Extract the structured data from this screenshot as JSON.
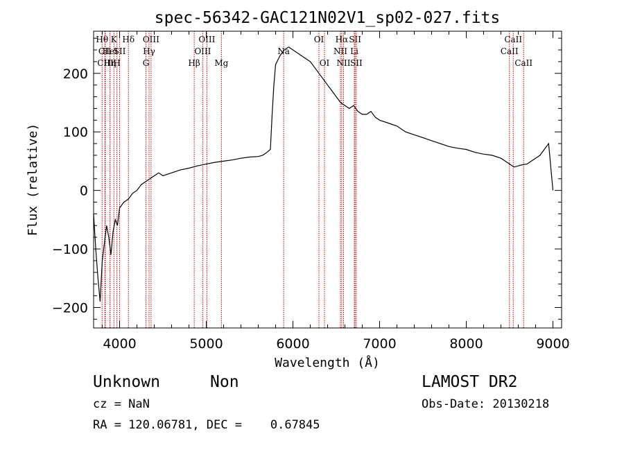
{
  "chart_data": {
    "type": "line",
    "title": "spec-56342-GAC121N02V1_sp02-027.fits",
    "xlabel": "Wavelength (Å)",
    "ylabel": "Flux (relative)",
    "xlim": [
      3700,
      9100
    ],
    "ylim": [
      -235,
      272
    ],
    "x_ticks": [
      4000,
      5000,
      6000,
      7000,
      8000,
      9000
    ],
    "y_ticks": [
      -200,
      -100,
      0,
      100,
      200
    ],
    "x_tick_labels": [
      "4000",
      "5000",
      "6000",
      "7000",
      "8000",
      "9000"
    ],
    "y_tick_labels": [
      "−200",
      "−100",
      "0",
      "100",
      "200"
    ],
    "grid": false,
    "series": [
      {
        "line_color": "#000000",
        "x": [
          3700,
          3725,
          3750,
          3775,
          3800,
          3825,
          3850,
          3875,
          3900,
          3925,
          3950,
          3975,
          4000,
          4050,
          4100,
          4150,
          4200,
          4250,
          4300,
          4350,
          4400,
          4450,
          4500,
          4600,
          4700,
          4800,
          4900,
          5000,
          5100,
          5200,
          5300,
          5400,
          5500,
          5600,
          5650,
          5700,
          5740,
          5760,
          5780,
          5800,
          5850,
          5900,
          5950,
          6000,
          6050,
          6100,
          6150,
          6200,
          6250,
          6300,
          6350,
          6400,
          6450,
          6500,
          6550,
          6600,
          6650,
          6700,
          6750,
          6800,
          6850,
          6900,
          6950,
          7000,
          7100,
          7200,
          7300,
          7400,
          7500,
          7600,
          7700,
          7800,
          7900,
          8000,
          8100,
          8200,
          8300,
          8400,
          8500,
          8550,
          8600,
          8650,
          8700,
          8750,
          8800,
          8850,
          8900,
          8950,
          9000
        ],
        "y": [
          -40,
          -100,
          -150,
          -190,
          -120,
          -90,
          -60,
          -80,
          -110,
          -70,
          -50,
          -60,
          -30,
          -20,
          -15,
          -5,
          0,
          10,
          15,
          20,
          25,
          30,
          25,
          30,
          35,
          38,
          42,
          45,
          48,
          50,
          52,
          55,
          57,
          58,
          60,
          65,
          70,
          130,
          180,
          215,
          230,
          240,
          245,
          240,
          235,
          230,
          225,
          220,
          210,
          200,
          190,
          180,
          170,
          160,
          150,
          145,
          140,
          145,
          135,
          130,
          130,
          135,
          125,
          120,
          115,
          110,
          100,
          95,
          90,
          85,
          80,
          75,
          72,
          70,
          65,
          62,
          60,
          55,
          45,
          40,
          42,
          44,
          45,
          50,
          55,
          60,
          70,
          80,
          0
        ]
      }
    ],
    "spectral_lines": [
      {
        "label": "Hθ",
        "wavelength": 3798,
        "row": 1
      },
      {
        "label": "CII",
        "wavelength": 3830,
        "row": 2
      },
      {
        "label": "CIII",
        "wavelength": 3836,
        "row": 3
      },
      {
        "label": "HeI",
        "wavelength": 3889,
        "row": 2
      },
      {
        "label": "K",
        "wavelength": 3934,
        "row": 1
      },
      {
        "label": "Hη",
        "wavelength": 3889,
        "row": 3
      },
      {
        "label": "SII",
        "wavelength": 4000,
        "row": 2
      },
      {
        "label": "H",
        "wavelength": 3969,
        "row": 3
      },
      {
        "label": "Hδ",
        "wavelength": 4102,
        "row": 1
      },
      {
        "label": "OIII",
        "wavelength": 4363,
        "row": 1
      },
      {
        "label": "Hγ",
        "wavelength": 4340,
        "row": 2
      },
      {
        "label": "G",
        "wavelength": 4304,
        "row": 3
      },
      {
        "label": "OIII",
        "wavelength": 5007,
        "row": 1
      },
      {
        "label": "OIII",
        "wavelength": 4959,
        "row": 2
      },
      {
        "label": "Hβ",
        "wavelength": 4861,
        "row": 3
      },
      {
        "label": "Mg",
        "wavelength": 5175,
        "row": 3
      },
      {
        "label": "Na",
        "wavelength": 5893,
        "row": 2
      },
      {
        "label": "OI",
        "wavelength": 6300,
        "row": 1
      },
      {
        "label": "OI",
        "wavelength": 6364,
        "row": 3
      },
      {
        "label": "Hα",
        "wavelength": 6563,
        "row": 1
      },
      {
        "label": "SII",
        "wavelength": 6717,
        "row": 1
      },
      {
        "label": "NII",
        "wavelength": 6548,
        "row": 2
      },
      {
        "label": "Li",
        "wavelength": 6708,
        "row": 2
      },
      {
        "label": "NII",
        "wavelength": 6584,
        "row": 3
      },
      {
        "label": "SII",
        "wavelength": 6731,
        "row": 3
      },
      {
        "label": "CaII",
        "wavelength": 8542,
        "row": 1
      },
      {
        "label": "CaII",
        "wavelength": 8498,
        "row": 2
      },
      {
        "label": "CaII",
        "wavelength": 8662,
        "row": 3
      }
    ],
    "spectral_line_color": "#cc0000"
  },
  "footer": {
    "object_class": "Unknown",
    "object_subclass": "Non",
    "survey": "LAMOST DR2",
    "cz": "cz = NaN",
    "obs_date": "Obs-Date: 20130218",
    "radec": "RA = 120.06781, DEC =    0.67845"
  }
}
